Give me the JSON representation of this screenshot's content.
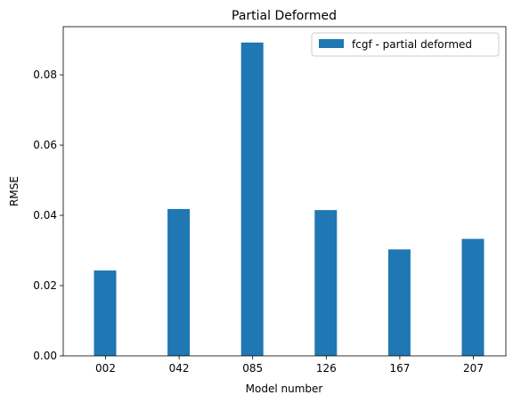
{
  "chart_data": {
    "type": "bar",
    "title": "Partial Deformed",
    "xlabel": "Model number",
    "ylabel": "RMSE",
    "categories": [
      "002",
      "042",
      "085",
      "126",
      "167",
      "207"
    ],
    "series": [
      {
        "name": "fcgf - partial deformed",
        "color": "#1f77b4",
        "values": [
          0.0243,
          0.0418,
          0.0892,
          0.0415,
          0.0303,
          0.0333
        ]
      }
    ],
    "ylim": [
      0,
      0.0937
    ],
    "yticks": [
      0.0,
      0.02,
      0.04,
      0.06,
      0.08
    ],
    "ytick_labels": [
      "0.00",
      "0.02",
      "0.04",
      "0.06",
      "0.08"
    ],
    "grid": false,
    "legend_position": "top-right"
  }
}
